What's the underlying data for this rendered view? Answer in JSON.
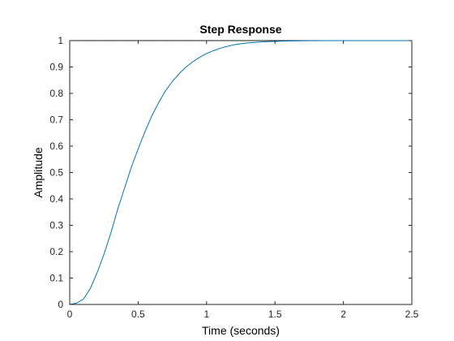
{
  "chart_data": {
    "type": "line",
    "title": "Step Response",
    "xlabel": "Time (seconds)",
    "ylabel": "Amplitude",
    "xlim": [
      0,
      2.5
    ],
    "ylim": [
      0,
      1
    ],
    "x_ticks": [
      0,
      0.5,
      1,
      1.5,
      2,
      2.5
    ],
    "x_tick_labels": [
      "0",
      "0.5",
      "1",
      "1.5",
      "2",
      "2.5"
    ],
    "y_ticks": [
      0,
      0.1,
      0.2,
      0.3,
      0.4,
      0.5,
      0.6,
      0.7,
      0.8,
      0.9,
      1
    ],
    "y_tick_labels": [
      "0",
      "0.1",
      "0.2",
      "0.3",
      "0.4",
      "0.5",
      "0.6",
      "0.7",
      "0.8",
      "0.9",
      "1"
    ],
    "grid": false,
    "reference_line": {
      "y": 1,
      "style": "dotted",
      "color": "#000000"
    },
    "series": [
      {
        "color": "#0072BD",
        "x": [
          0,
          0.05,
          0.1,
          0.15,
          0.2,
          0.25,
          0.3,
          0.35,
          0.4,
          0.45,
          0.5,
          0.55,
          0.6,
          0.65,
          0.7,
          0.75,
          0.8,
          0.85,
          0.9,
          0.95,
          1.0,
          1.05,
          1.1,
          1.15,
          1.2,
          1.25,
          1.3,
          1.35,
          1.4,
          1.45,
          1.5,
          1.55,
          1.6,
          1.65,
          1.7,
          1.75,
          1.8,
          1.85,
          1.9,
          1.95,
          2.0,
          2.1,
          2.2,
          2.3,
          2.4,
          2.5
        ],
        "values": [
          0,
          0.005,
          0.02,
          0.06,
          0.12,
          0.19,
          0.27,
          0.36,
          0.44,
          0.52,
          0.59,
          0.655,
          0.715,
          0.765,
          0.81,
          0.845,
          0.875,
          0.9,
          0.92,
          0.937,
          0.951,
          0.962,
          0.971,
          0.978,
          0.984,
          0.988,
          0.991,
          0.993,
          0.995,
          0.996,
          0.997,
          0.998,
          0.9985,
          0.999,
          0.9993,
          0.9995,
          0.9997,
          0.9998,
          0.9999,
          1.0,
          1.0,
          1.0,
          1.0,
          1.0,
          1.0,
          1.0
        ]
      }
    ]
  }
}
